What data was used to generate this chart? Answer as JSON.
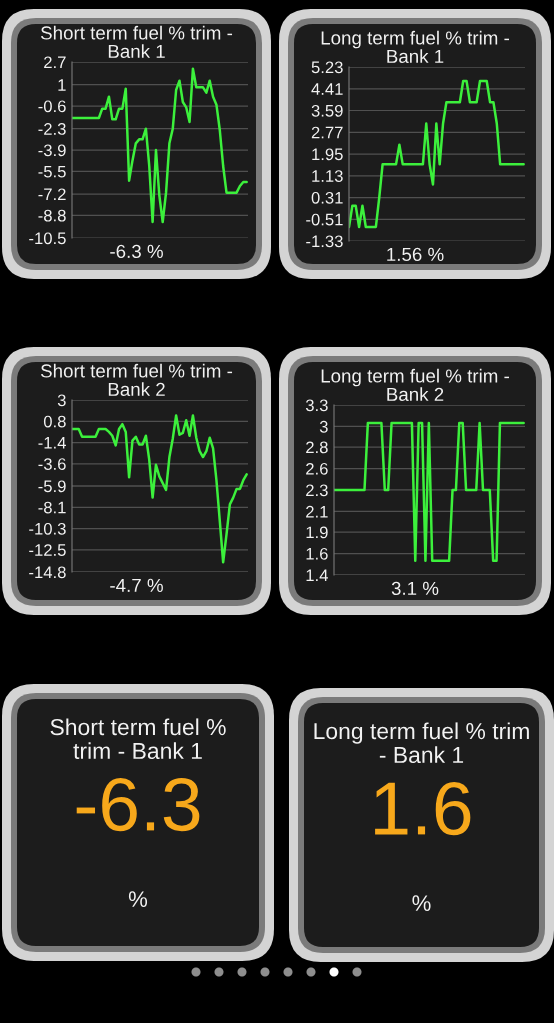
{
  "chart_data": [
    {
      "type": "line",
      "title": "Short term fuel % trim -\nBank 1",
      "categories": [
        null,
        null,
        null,
        null,
        null,
        null,
        null,
        null,
        null,
        null,
        null,
        null,
        null,
        null,
        null,
        null,
        null,
        null,
        null,
        null,
        null,
        null,
        null,
        null,
        null,
        null,
        null,
        null,
        null,
        null,
        null,
        null,
        null,
        null,
        null,
        null,
        null,
        null,
        null,
        null,
        null,
        null,
        null,
        null,
        null,
        null,
        null,
        null,
        null,
        null,
        null,
        null,
        null
      ],
      "values": [
        -1.5,
        -1.5,
        -1.5,
        -1.5,
        -1.5,
        -1.5,
        -1.5,
        -1.5,
        -1.5,
        -0.8,
        -0.8,
        0.1,
        -1.6,
        -1.6,
        -0.8,
        -0.8,
        0.7,
        -6.2,
        -4.7,
        -3.4,
        -3.1,
        -3.1,
        -2.3,
        -5.1,
        -9.3,
        -3.9,
        -7.3,
        -9.3,
        -7.1,
        -3.4,
        -2.3,
        0.6,
        1.3,
        -0.3,
        -0.7,
        -1.8,
        2.2,
        0.8,
        0.8,
        0.8,
        0.4,
        1.3,
        0.1,
        -0.5,
        -2.4,
        -5.1,
        -7.1,
        -7.1,
        -7.1,
        -7.1,
        -6.6,
        -6.3,
        -6.3
      ],
      "color": "#3cf03c",
      "ylim": [
        -10.5,
        2.7
      ],
      "yticks": [
        2.7,
        1,
        -0.6,
        -2.3,
        -3.9,
        -5.5,
        -7.2,
        -8.8,
        -10.5
      ],
      "grid": "y",
      "tick_labels": "y",
      "annotations": [
        "-6.3 %"
      ]
    },
    {
      "type": "line",
      "title": "Long term fuel % trim -\nBank 1",
      "categories": [
        null,
        null,
        null,
        null,
        null,
        null,
        null,
        null,
        null,
        null,
        null,
        null,
        null,
        null,
        null,
        null,
        null,
        null,
        null,
        null,
        null,
        null,
        null,
        null,
        null,
        null,
        null,
        null,
        null,
        null,
        null,
        null,
        null,
        null,
        null,
        null,
        null,
        null,
        null,
        null,
        null,
        null,
        null,
        null,
        null,
        null,
        null,
        null,
        null,
        null,
        null,
        null,
        null
      ],
      "values": [
        -0.8,
        0,
        0,
        -0.8,
        0,
        -0.8,
        -0.8,
        -0.8,
        -0.8,
        0.3,
        1.56,
        1.56,
        1.56,
        1.56,
        1.56,
        2.3,
        1.56,
        1.56,
        1.56,
        1.56,
        1.56,
        1.56,
        1.56,
        3.1,
        1.56,
        0.8,
        3.1,
        1.56,
        3.1,
        3.9,
        3.9,
        3.9,
        3.9,
        3.9,
        4.7,
        4.7,
        3.9,
        3.9,
        3.9,
        4.7,
        4.7,
        4.7,
        3.9,
        3.9,
        3.1,
        1.56,
        1.56,
        1.56,
        1.56,
        1.56,
        1.56,
        1.56,
        1.56
      ],
      "color": "#3cf03c",
      "ylim": [
        -1.33,
        5.23
      ],
      "yticks": [
        5.23,
        4.41,
        3.59,
        2.77,
        1.95,
        1.13,
        0.31,
        -0.51,
        -1.33
      ],
      "grid": "y",
      "tick_labels": "y",
      "annotations": [
        "1.56 %"
      ]
    },
    {
      "type": "line",
      "title": "Short term fuel % trim -\nBank 2",
      "categories": [
        null,
        null,
        null,
        null,
        null,
        null,
        null,
        null,
        null,
        null,
        null,
        null,
        null,
        null,
        null,
        null,
        null,
        null,
        null,
        null,
        null,
        null,
        null,
        null,
        null,
        null,
        null,
        null,
        null,
        null,
        null,
        null,
        null,
        null,
        null,
        null,
        null,
        null,
        null,
        null,
        null,
        null,
        null,
        null,
        null,
        null,
        null,
        null,
        null,
        null,
        null,
        null,
        null
      ],
      "values": [
        0,
        0,
        0,
        -0.8,
        -0.8,
        -0.8,
        -0.8,
        -0.8,
        0,
        0,
        0,
        -0.3,
        -0.7,
        -1.7,
        0,
        0.5,
        -0.3,
        -5.0,
        -1.2,
        -0.8,
        -1.6,
        -1.6,
        -0.7,
        -3.2,
        -7.1,
        -3.7,
        -4.9,
        -5.6,
        -6.3,
        -2.9,
        -1.0,
        1.4,
        -0.6,
        -0.4,
        0.9,
        -0.7,
        1.4,
        -0.9,
        -2.3,
        -2.9,
        -2.3,
        -0.9,
        -2.0,
        -5.3,
        -9.5,
        -13.8,
        -10.9,
        -7.8,
        -7.1,
        -6.2,
        -6.2,
        -5.3,
        -4.7
      ],
      "color": "#3cf03c",
      "ylim": [
        -14.8,
        3
      ],
      "yticks": [
        3,
        0.8,
        -1.4,
        -3.6,
        -5.9,
        -8.1,
        -10.3,
        -12.5,
        -14.8
      ],
      "grid": "y",
      "tick_labels": "y",
      "annotations": [
        "-4.7 %"
      ]
    },
    {
      "type": "line",
      "title": "Long term fuel % trim -\nBank 2",
      "categories": [
        null,
        null,
        null,
        null,
        null,
        null,
        null,
        null,
        null,
        null,
        null,
        null,
        null,
        null,
        null,
        null,
        null,
        null,
        null,
        null,
        null,
        null,
        null,
        null,
        null,
        null,
        null,
        null,
        null,
        null,
        null,
        null,
        null,
        null,
        null,
        null,
        null,
        null,
        null,
        null,
        null,
        null,
        null,
        null,
        null,
        null,
        null,
        null,
        null,
        null,
        null,
        null,
        null,
        null,
        null,
        null,
        null
      ],
      "values": [
        2.35,
        2.35,
        2.35,
        2.35,
        2.35,
        2.35,
        2.35,
        2.35,
        2.35,
        2.35,
        3.1,
        3.1,
        3.1,
        3.1,
        3.1,
        2.35,
        2.35,
        3.1,
        3.1,
        3.1,
        3.1,
        3.1,
        3.1,
        3.1,
        1.56,
        3.1,
        3.1,
        1.56,
        3.1,
        1.56,
        1.56,
        1.56,
        1.56,
        1.56,
        1.56,
        2.35,
        2.35,
        3.1,
        3.1,
        2.35,
        2.35,
        2.35,
        2.35,
        3.1,
        2.35,
        2.35,
        2.35,
        1.56,
        1.56,
        3.1,
        3.1,
        3.1,
        3.1,
        3.1,
        3.1,
        3.1,
        3.1
      ],
      "color": "#3cf03c",
      "ylim": [
        1.4,
        3.3
      ],
      "yticks": [
        3.3,
        {
          "value": 3.06,
          "label": "3"
        },
        {
          "value": 2.83,
          "label": "2.8"
        },
        {
          "value": 2.59,
          "label": "2.6"
        },
        {
          "value": 2.35,
          "label": "2.3"
        },
        {
          "value": 2.11,
          "label": "2.1"
        },
        {
          "value": 1.88,
          "label": "1.9"
        },
        {
          "value": 1.64,
          "label": "1.6"
        },
        1.4
      ],
      "grid": "y",
      "tick_labels": "y",
      "annotations": [
        "3.1 %"
      ]
    },
    {
      "type": "other",
      "title": "Short term fuel %\ntrim - Bank 1",
      "annotations": [
        "-6.3",
        "%"
      ]
    },
    {
      "type": "other",
      "title": "Long term fuel % trim\n- Bank 1",
      "annotations": [
        "1.6",
        "%"
      ]
    }
  ]
}
